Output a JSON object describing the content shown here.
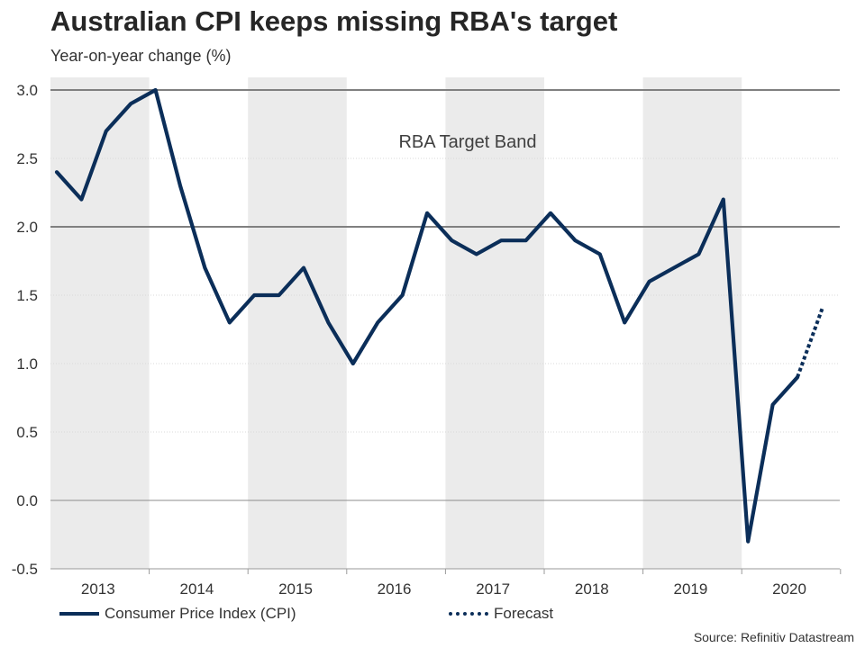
{
  "title": "Australian CPI keeps missing RBA's target",
  "subtitle": "Year-on-year change (%)",
  "source": "Source: Refinitiv Datastream",
  "colors": {
    "series": "#0b2e59",
    "shade": "#ebebeb",
    "band_line": "#808080",
    "grid": "#d9d9d9",
    "axis": "#9a9a9a"
  },
  "legend": {
    "cpi": "Consumer Price Index (CPI)",
    "forecast": "Forecast"
  },
  "chart_data": {
    "type": "line",
    "title": "Australian CPI keeps missing RBA's target",
    "subtitle": "Year-on-year change (%)",
    "ylim": [
      -0.5,
      3.0
    ],
    "yticks": [
      3.0,
      2.5,
      2.0,
      1.5,
      1.0,
      0.5,
      0.0,
      -0.5
    ],
    "ytick_labels": [
      "3.0",
      "2.5",
      "2.0",
      "1.5",
      "1.0",
      "0.5",
      "0.0",
      "-0.5"
    ],
    "year_labels": [
      "2013",
      "2014",
      "2015",
      "2016",
      "2017",
      "2018",
      "2019",
      "2020"
    ],
    "shaded_years": [
      "2013",
      "2015",
      "2017",
      "2019"
    ],
    "annotation": "RBA Target Band",
    "target_band": [
      2.0,
      3.0
    ],
    "grid": true,
    "legend_position": "bottom",
    "series": [
      {
        "name": "Consumer Price Index (CPI)",
        "style": "solid",
        "x": [
          "2013 Q1",
          "2013 Q2",
          "2013 Q3",
          "2013 Q4",
          "2014 Q1",
          "2014 Q2",
          "2014 Q3",
          "2014 Q4",
          "2015 Q1",
          "2015 Q2",
          "2015 Q3",
          "2015 Q4",
          "2016 Q1",
          "2016 Q2",
          "2016 Q3",
          "2016 Q4",
          "2017 Q1",
          "2017 Q2",
          "2017 Q3",
          "2017 Q4",
          "2018 Q1",
          "2018 Q2",
          "2018 Q3",
          "2018 Q4",
          "2019 Q1",
          "2019 Q2",
          "2019 Q3",
          "2019 Q4",
          "2020 Q1",
          "2020 Q2",
          "2020 Q3",
          "2020 Q4"
        ],
        "values": [
          2.4,
          2.2,
          2.7,
          2.9,
          3.0,
          2.3,
          1.7,
          1.3,
          1.5,
          1.5,
          1.7,
          1.3,
          1.0,
          1.3,
          1.5,
          2.1,
          1.9,
          1.8,
          1.9,
          1.9,
          2.1,
          1.9,
          1.8,
          1.3,
          1.6,
          1.7,
          1.8,
          2.2,
          -0.3,
          0.7,
          0.9,
          null
        ]
      },
      {
        "name": "Forecast",
        "style": "dotted",
        "x": [
          "2020 Q3",
          "2020 Q4"
        ],
        "values": [
          0.9,
          1.4
        ]
      }
    ]
  }
}
